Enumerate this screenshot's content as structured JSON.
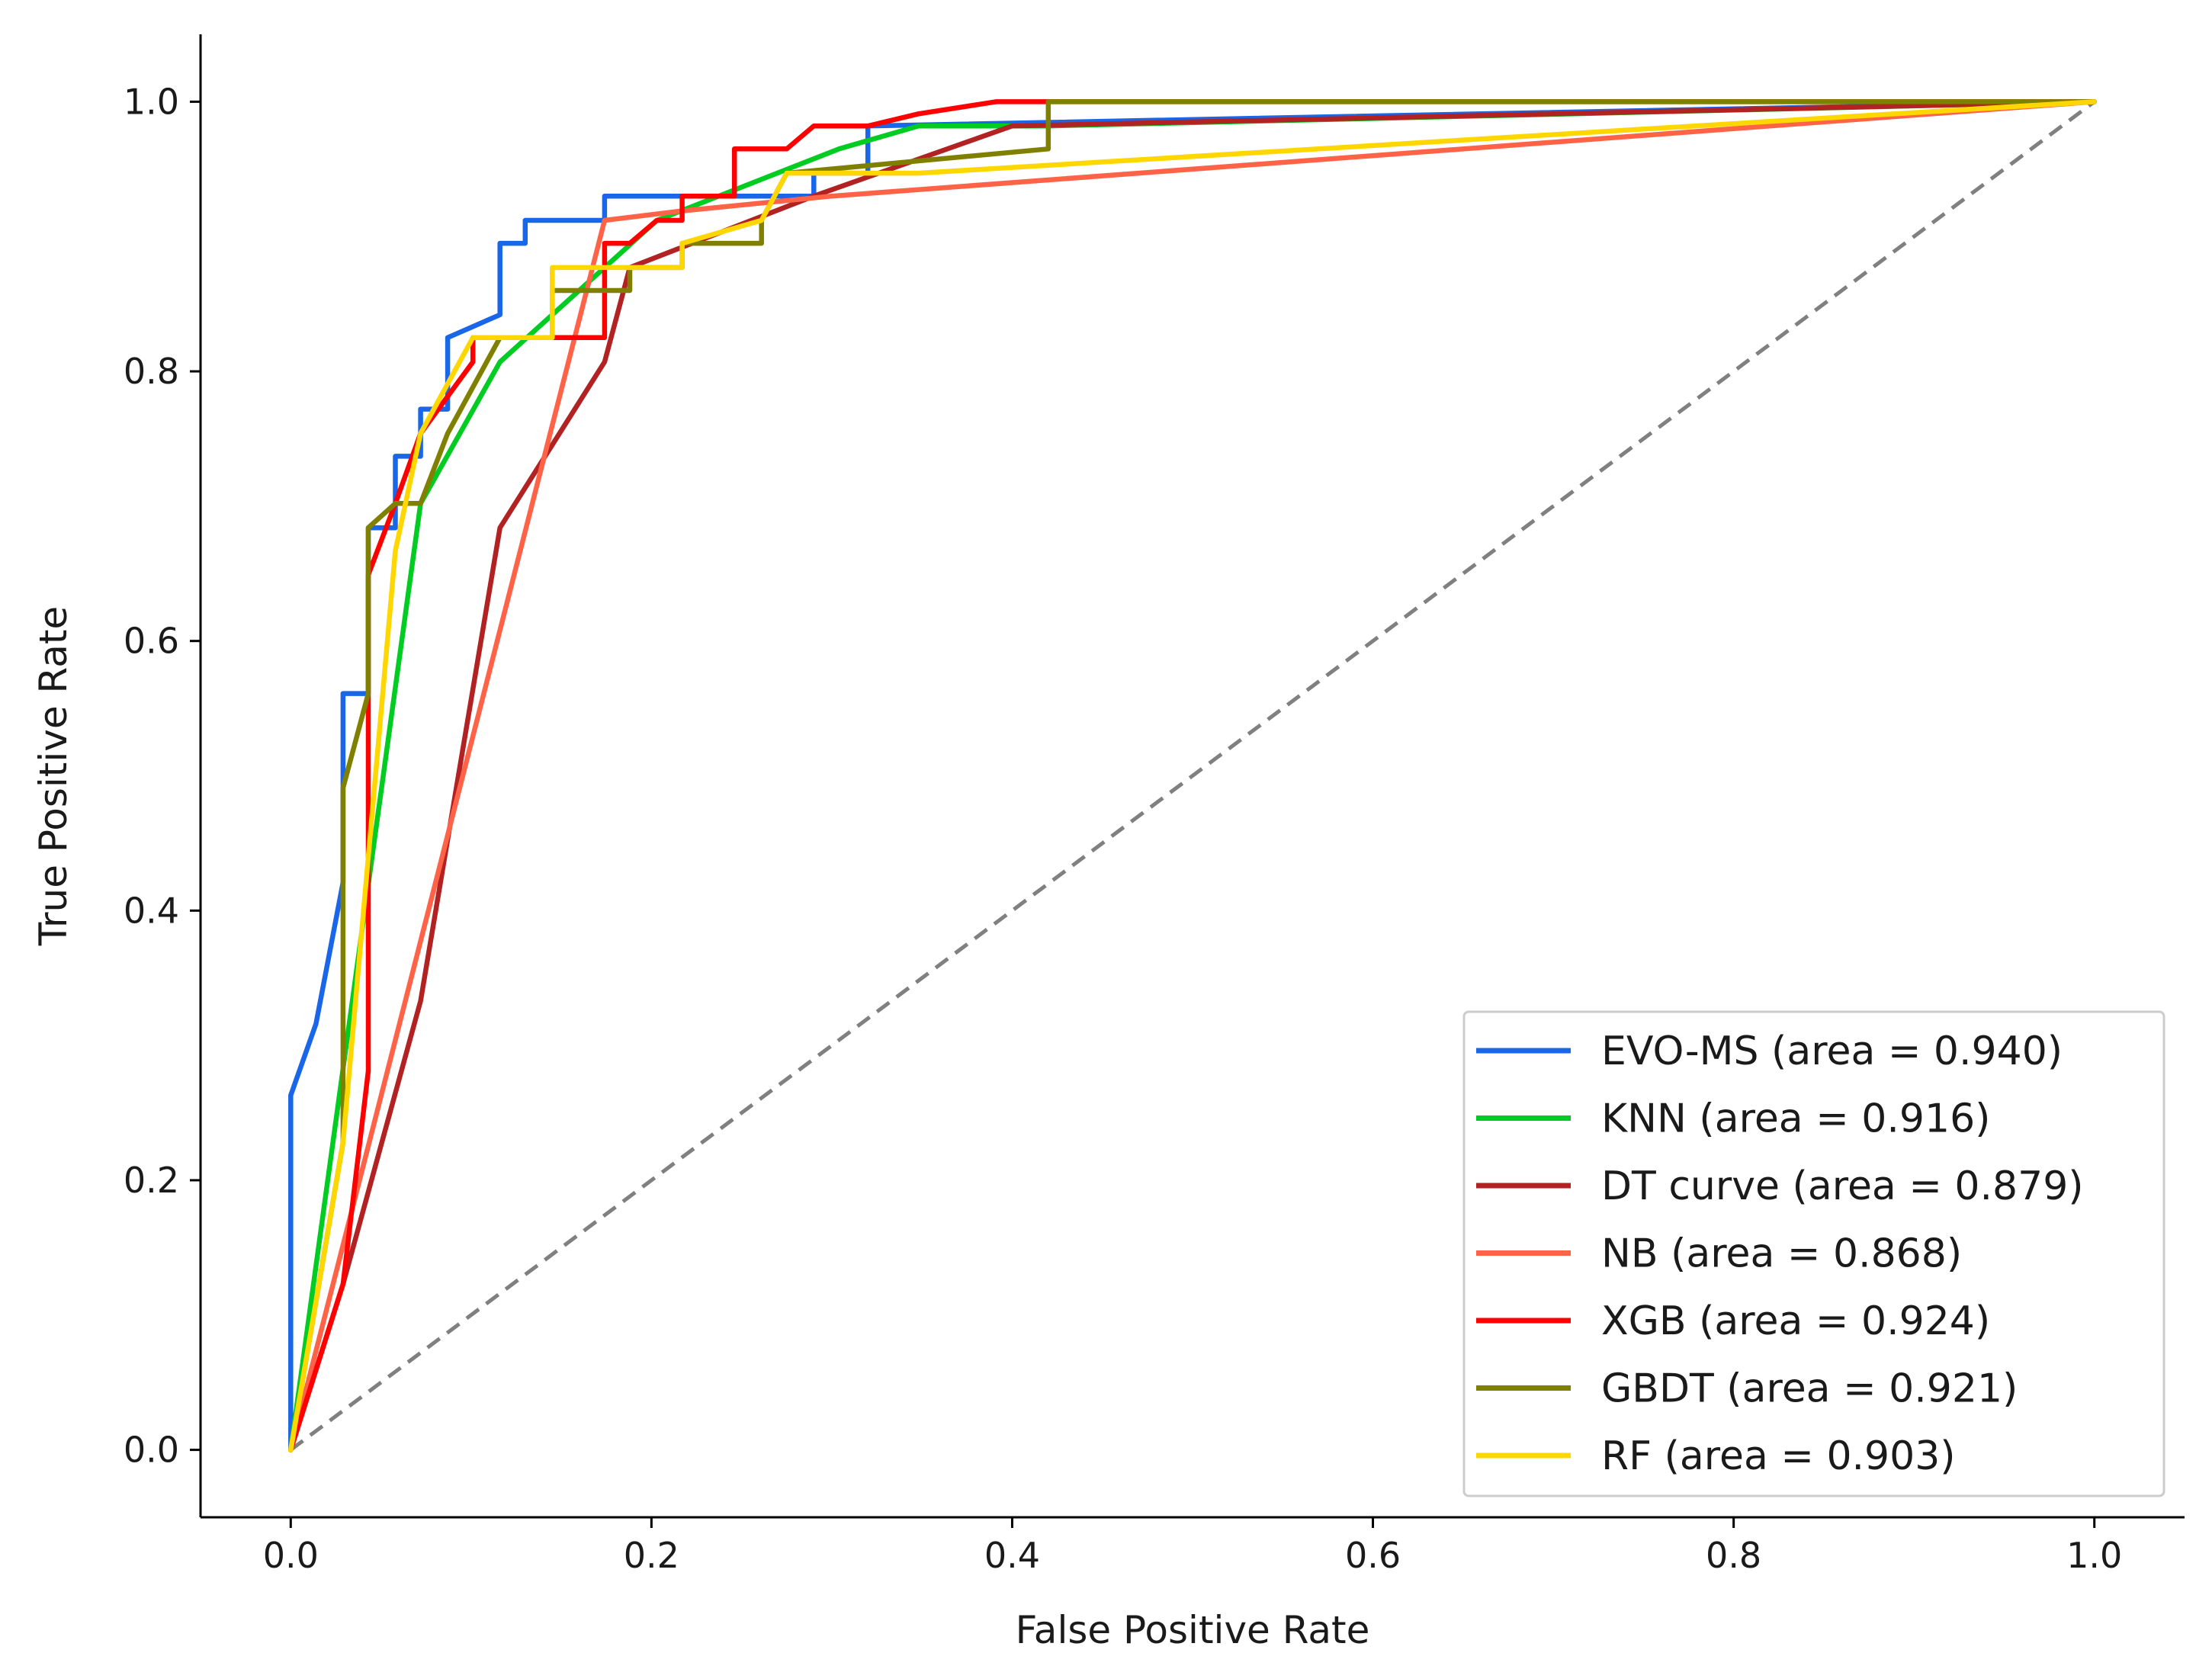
{
  "chart_data": {
    "type": "line",
    "title": "",
    "xlabel": "False Positive Rate",
    "ylabel": "True Positive Rate",
    "xlim": [
      -0.05,
      1.05
    ],
    "ylim": [
      -0.05,
      1.05
    ],
    "xticks": [
      "0.0",
      "0.2",
      "0.4",
      "0.6",
      "0.8",
      "1.0"
    ],
    "yticks": [
      "0.0",
      "0.2",
      "0.4",
      "0.6",
      "0.8",
      "1.0"
    ],
    "grid": false,
    "legend_position": "lower-right",
    "diagonal": {
      "name": "chance",
      "color": "#808080",
      "style": "dashed",
      "x": [
        0,
        1
      ],
      "y": [
        0,
        1
      ]
    },
    "series": [
      {
        "name": "EVO-MS",
        "label": "EVO-MS (area = 0.940)",
        "color": "#1a66e8",
        "x": [
          0,
          0,
          0.014,
          0.029,
          0.029,
          0.043,
          0.043,
          0.058,
          0.058,
          0.058,
          0.072,
          0.072,
          0.087,
          0.087,
          0.116,
          0.116,
          0.13,
          0.13,
          0.174,
          0.174,
          0.29,
          0.29,
          0.32,
          0.32,
          1.0
        ],
        "y": [
          0,
          0.263,
          0.316,
          0.421,
          0.561,
          0.561,
          0.684,
          0.684,
          0.701,
          0.737,
          0.737,
          0.772,
          0.772,
          0.825,
          0.842,
          0.895,
          0.895,
          0.912,
          0.912,
          0.93,
          0.93,
          0.947,
          0.947,
          0.982,
          1.0
        ]
      },
      {
        "name": "KNN",
        "label": "KNN (area = 0.916)",
        "color": "#00cc22",
        "x": [
          0,
          0.072,
          0.116,
          0.174,
          0.203,
          0.304,
          0.348,
          0.42,
          1.0
        ],
        "y": [
          0,
          0.702,
          0.807,
          0.877,
          0.912,
          0.965,
          0.982,
          0.982,
          1.0
        ]
      },
      {
        "name": "DT curve",
        "label": "DT curve (area = 0.879)",
        "color": "#b22222",
        "x": [
          0,
          0.029,
          0.072,
          0.116,
          0.174,
          0.188,
          0.29,
          0.4,
          1.0
        ],
        "y": [
          0,
          0.123,
          0.333,
          0.684,
          0.807,
          0.877,
          0.93,
          0.982,
          1.0
        ]
      },
      {
        "name": "NB",
        "label": "NB (area = 0.868)",
        "color": "#ff6347",
        "x": [
          0,
          0.174,
          0.217,
          0.3,
          1.0
        ],
        "y": [
          0,
          0.912,
          0.919,
          0.93,
          1.0
        ]
      },
      {
        "name": "XGB",
        "label": "XGB (area = 0.924)",
        "color": "#ff0000",
        "x": [
          0,
          0.029,
          0.043,
          0.043,
          0.058,
          0.072,
          0.101,
          0.101,
          0.174,
          0.174,
          0.188,
          0.203,
          0.217,
          0.217,
          0.246,
          0.246,
          0.275,
          0.29,
          0.32,
          0.348,
          0.391,
          0.42,
          1.0
        ],
        "y": [
          0,
          0.123,
          0.281,
          0.649,
          0.702,
          0.754,
          0.807,
          0.825,
          0.825,
          0.895,
          0.895,
          0.912,
          0.912,
          0.93,
          0.93,
          0.965,
          0.965,
          0.982,
          0.982,
          0.991,
          1.0,
          1.0,
          1.0
        ]
      },
      {
        "name": "GBDT",
        "label": "GBDT (area = 0.921)",
        "color": "#808000",
        "x": [
          0,
          0.029,
          0.029,
          0.043,
          0.043,
          0.058,
          0.072,
          0.087,
          0.116,
          0.145,
          0.145,
          0.174,
          0.174,
          0.188,
          0.188,
          0.217,
          0.217,
          0.261,
          0.261,
          0.275,
          0.42,
          0.42,
          1.0
        ],
        "y": [
          0,
          0.228,
          0.491,
          0.561,
          0.684,
          0.702,
          0.702,
          0.754,
          0.825,
          0.825,
          0.86,
          0.86,
          0.86,
          0.86,
          0.877,
          0.877,
          0.895,
          0.895,
          0.912,
          0.947,
          0.965,
          1.0,
          1.0
        ]
      },
      {
        "name": "RF",
        "label": "RF (area = 0.903)",
        "color": "#ffd700",
        "x": [
          0,
          0.029,
          0.058,
          0.072,
          0.101,
          0.145,
          0.145,
          0.217,
          0.217,
          0.261,
          0.275,
          0.348,
          1.0
        ],
        "y": [
          0,
          0.228,
          0.667,
          0.754,
          0.825,
          0.825,
          0.877,
          0.877,
          0.895,
          0.912,
          0.947,
          0.947,
          1.0
        ]
      }
    ]
  }
}
